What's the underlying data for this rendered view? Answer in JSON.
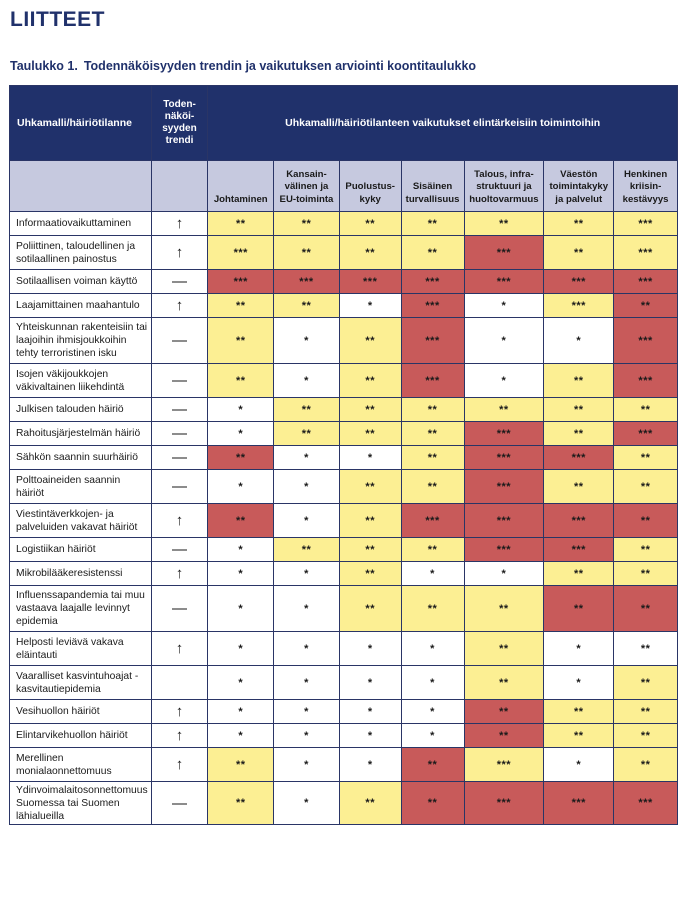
{
  "heading": "LIITTEET",
  "caption": {
    "number": "Taulukko 1.",
    "title": "Todennäköisyyden trendin ja vaikutuksen arviointi koontitaulukko"
  },
  "table": {
    "col_threat_header": "Uhkamalli/häiriötilanne",
    "col_trend_header": "Toden-\nnäköi-\nsyyden\ntrendi",
    "impact_header": "Uhkamalli/häiriötilanteen vaikutukset elintärkeisiin toimintoihin",
    "functions": [
      "Johtaminen",
      "Kansain-\nvälinen ja\nEU-toiminta",
      "Puolustus-\nkyky",
      "Sisäinen\nturvallisuus",
      "Talous, infra-\nstruktuuri ja\nhuoltovarmuus",
      "Väestön\ntoimintakyky\nja palvelut",
      "Henkinen\nkriisin-\nkestävyys"
    ],
    "rows": [
      {
        "name": "Informaatiovaikuttaminen",
        "trend": "↑",
        "values": [
          "**",
          "**",
          "**",
          "**",
          "**",
          "**",
          "***"
        ],
        "levels": [
          "y",
          "y",
          "y",
          "y",
          "y",
          "y",
          "y"
        ]
      },
      {
        "name": "Poliittinen, taloudellinen ja sotilaallinen painostus",
        "trend": "↑",
        "values": [
          "***",
          "**",
          "**",
          "**",
          "***",
          "**",
          "***"
        ],
        "levels": [
          "y",
          "y",
          "y",
          "y",
          "r",
          "y",
          "y"
        ]
      },
      {
        "name": "Sotilaallisen voiman käyttö",
        "trend": "—",
        "values": [
          "***",
          "***",
          "***",
          "***",
          "***",
          "***",
          "***"
        ],
        "levels": [
          "r",
          "r",
          "r",
          "r",
          "r",
          "r",
          "r"
        ]
      },
      {
        "name": "Laajamittainen maahantulo",
        "trend": "↑",
        "values": [
          "**",
          "**",
          "*",
          "***",
          "*",
          "***",
          "**"
        ],
        "levels": [
          "y",
          "y",
          "w",
          "r",
          "w",
          "y",
          "r"
        ]
      },
      {
        "name": "Yhteiskunnan rakenteisiin tai laajoihin ihmisjoukkoihin tehty terroristinen isku",
        "trend": "—",
        "values": [
          "**",
          "*",
          "**",
          "***",
          "*",
          "*",
          "***"
        ],
        "levels": [
          "y",
          "w",
          "y",
          "r",
          "w",
          "w",
          "r"
        ]
      },
      {
        "name": "Isojen väkijoukkojen väkivaltainen liikehdintä",
        "trend": "—",
        "values": [
          "**",
          "*",
          "**",
          "***",
          "*",
          "**",
          "***"
        ],
        "levels": [
          "y",
          "w",
          "y",
          "r",
          "w",
          "y",
          "r"
        ]
      },
      {
        "name": "Julkisen talouden häiriö",
        "trend": "—",
        "values": [
          "*",
          "**",
          "**",
          "**",
          "**",
          "**",
          "**"
        ],
        "levels": [
          "w",
          "y",
          "y",
          "y",
          "y",
          "y",
          "y"
        ]
      },
      {
        "name": "Rahoitusjärjestelmän häiriö",
        "trend": "—",
        "values": [
          "*",
          "**",
          "**",
          "**",
          "***",
          "**",
          "***"
        ],
        "levels": [
          "w",
          "y",
          "y",
          "y",
          "r",
          "y",
          "r"
        ]
      },
      {
        "name": "Sähkön saannin suurhäiriö",
        "trend": "—",
        "values": [
          "**",
          "*",
          "*",
          "**",
          "***",
          "***",
          "**"
        ],
        "levels": [
          "r",
          "w",
          "w",
          "y",
          "r",
          "r",
          "y"
        ]
      },
      {
        "name": "Polttoaineiden saannin häiriöt",
        "trend": "—",
        "values": [
          "*",
          "*",
          "**",
          "**",
          "***",
          "**",
          "**"
        ],
        "levels": [
          "w",
          "w",
          "y",
          "y",
          "r",
          "y",
          "y"
        ]
      },
      {
        "name": "Viestintäverkkojen- ja palveluiden vakavat häiriöt",
        "trend": "↑",
        "values": [
          "**",
          "*",
          "**",
          "***",
          "***",
          "***",
          "**"
        ],
        "levels": [
          "r",
          "w",
          "y",
          "r",
          "r",
          "r",
          "r"
        ]
      },
      {
        "name": "Logistiikan häiriöt",
        "trend": "—",
        "values": [
          "*",
          "**",
          "**",
          "**",
          "***",
          "***",
          "**"
        ],
        "levels": [
          "w",
          "y",
          "y",
          "y",
          "r",
          "r",
          "y"
        ]
      },
      {
        "name": "Mikrobilääkeresistenssi",
        "trend": "↑",
        "values": [
          "*",
          "*",
          "**",
          "*",
          "*",
          "**",
          "**"
        ],
        "levels": [
          "w",
          "w",
          "y",
          "w",
          "w",
          "y",
          "y"
        ]
      },
      {
        "name": "Influenssapandemia tai muu vastaava laajalle levinnyt epidemia",
        "trend": "—",
        "values": [
          "*",
          "*",
          "**",
          "**",
          "**",
          "**",
          "**"
        ],
        "levels": [
          "w",
          "w",
          "y",
          "y",
          "y",
          "r",
          "r"
        ]
      },
      {
        "name": "Helposti leviävä vakava eläintauti",
        "trend": "↑",
        "values": [
          "*",
          "*",
          "*",
          "*",
          "**",
          "*",
          "**"
        ],
        "levels": [
          "w",
          "w",
          "w",
          "w",
          "y",
          "w",
          "w"
        ]
      },
      {
        "name": "Vaaralliset kasvintuhoajat -kasvitautiepidemia",
        "trend": "",
        "values": [
          "*",
          "*",
          "*",
          "*",
          "**",
          "*",
          "**"
        ],
        "levels": [
          "w",
          "w",
          "w",
          "w",
          "y",
          "w",
          "y"
        ]
      },
      {
        "name": "Vesihuollon häiriöt",
        "trend": "↑",
        "values": [
          "*",
          "*",
          "*",
          "*",
          "**",
          "**",
          "**"
        ],
        "levels": [
          "w",
          "w",
          "w",
          "w",
          "r",
          "y",
          "y"
        ]
      },
      {
        "name": "Elintarvikehuollon häiriöt",
        "trend": "↑",
        "values": [
          "*",
          "*",
          "*",
          "*",
          "**",
          "**",
          "**"
        ],
        "levels": [
          "w",
          "w",
          "w",
          "w",
          "r",
          "y",
          "y"
        ]
      },
      {
        "name": "Merellinen monialaonnettomuus",
        "trend": "↑",
        "values": [
          "**",
          "*",
          "*",
          "**",
          "***",
          "*",
          "**"
        ],
        "levels": [
          "y",
          "w",
          "w",
          "r",
          "y",
          "w",
          "y"
        ]
      },
      {
        "name": "Ydinvoimalaitosonnettomuus Suomessa tai Suomen lähialueilla",
        "trend": "—",
        "values": [
          "**",
          "*",
          "**",
          "**",
          "***",
          "***",
          "***"
        ],
        "levels": [
          "y",
          "w",
          "y",
          "r",
          "r",
          "r",
          "r"
        ]
      }
    ]
  }
}
